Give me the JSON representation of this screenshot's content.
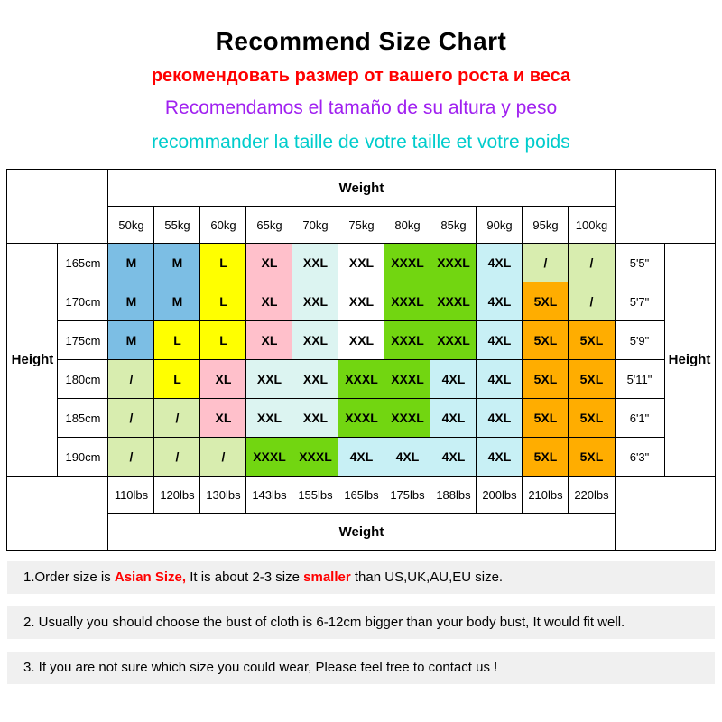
{
  "header": {
    "title": "Recommend Size Chart",
    "subtitle_ru": "рекомендовать размер от вашего роста и веса",
    "subtitle_es": "Recomendamos el tamaño de su altura y peso",
    "subtitle_fr": "recommander la taille de votre taille et votre poids",
    "colors": {
      "title": "#000000",
      "ru": "#FF0000",
      "es": "#A020F0",
      "fr": "#00CCCC"
    }
  },
  "chart_data": {
    "type": "table",
    "title": "Recommend Size Chart",
    "weight_label": "Weight",
    "height_label": "Height",
    "weights_kg": [
      "50kg",
      "55kg",
      "60kg",
      "65kg",
      "70kg",
      "75kg",
      "80kg",
      "85kg",
      "90kg",
      "95kg",
      "100kg"
    ],
    "weights_lbs": [
      "110lbs",
      "120lbs",
      "130lbs",
      "143lbs",
      "155lbs",
      "165lbs",
      "175lbs",
      "188lbs",
      "200lbs",
      "210lbs",
      "220lbs"
    ],
    "cell_colors": {
      "blue": "#7CBEE4",
      "yellow": "#FFFF00",
      "pink": "#FFC0CB",
      "paleCyan": "#DCF4F1",
      "white": "#FFFFFF",
      "green": "#72D611",
      "cyan": "#C8F0F5",
      "orange": "#FFAD00",
      "paleGreen": "#D8EDAF"
    },
    "rows": [
      {
        "height_cm": "165cm",
        "height_ft": "5'5\"",
        "cells": [
          {
            "v": "M",
            "c": "blue"
          },
          {
            "v": "M",
            "c": "blue"
          },
          {
            "v": "L",
            "c": "yellow"
          },
          {
            "v": "XL",
            "c": "pink"
          },
          {
            "v": "XXL",
            "c": "paleCyan"
          },
          {
            "v": "XXL",
            "c": "white"
          },
          {
            "v": "XXXL",
            "c": "green"
          },
          {
            "v": "XXXL",
            "c": "green"
          },
          {
            "v": "4XL",
            "c": "cyan"
          },
          {
            "v": "/",
            "c": "paleGreen"
          },
          {
            "v": "/",
            "c": "paleGreen"
          }
        ]
      },
      {
        "height_cm": "170cm",
        "height_ft": "5'7\"",
        "cells": [
          {
            "v": "M",
            "c": "blue"
          },
          {
            "v": "M",
            "c": "blue"
          },
          {
            "v": "L",
            "c": "yellow"
          },
          {
            "v": "XL",
            "c": "pink"
          },
          {
            "v": "XXL",
            "c": "paleCyan"
          },
          {
            "v": "XXL",
            "c": "white"
          },
          {
            "v": "XXXL",
            "c": "green"
          },
          {
            "v": "XXXL",
            "c": "green"
          },
          {
            "v": "4XL",
            "c": "cyan"
          },
          {
            "v": "5XL",
            "c": "orange"
          },
          {
            "v": "/",
            "c": "paleGreen"
          }
        ]
      },
      {
        "height_cm": "175cm",
        "height_ft": "5'9\"",
        "cells": [
          {
            "v": "M",
            "c": "blue"
          },
          {
            "v": "L",
            "c": "yellow"
          },
          {
            "v": "L",
            "c": "yellow"
          },
          {
            "v": "XL",
            "c": "pink"
          },
          {
            "v": "XXL",
            "c": "paleCyan"
          },
          {
            "v": "XXL",
            "c": "white"
          },
          {
            "v": "XXXL",
            "c": "green"
          },
          {
            "v": "XXXL",
            "c": "green"
          },
          {
            "v": "4XL",
            "c": "cyan"
          },
          {
            "v": "5XL",
            "c": "orange"
          },
          {
            "v": "5XL",
            "c": "orange"
          }
        ]
      },
      {
        "height_cm": "180cm",
        "height_ft": "5'11\"",
        "cells": [
          {
            "v": "/",
            "c": "paleGreen"
          },
          {
            "v": "L",
            "c": "yellow"
          },
          {
            "v": "XL",
            "c": "pink"
          },
          {
            "v": "XXL",
            "c": "paleCyan"
          },
          {
            "v": "XXL",
            "c": "paleCyan"
          },
          {
            "v": "XXXL",
            "c": "green"
          },
          {
            "v": "XXXL",
            "c": "green"
          },
          {
            "v": "4XL",
            "c": "cyan"
          },
          {
            "v": "4XL",
            "c": "cyan"
          },
          {
            "v": "5XL",
            "c": "orange"
          },
          {
            "v": "5XL",
            "c": "orange"
          }
        ]
      },
      {
        "height_cm": "185cm",
        "height_ft": "6'1\"",
        "cells": [
          {
            "v": "/",
            "c": "paleGreen"
          },
          {
            "v": "/",
            "c": "paleGreen"
          },
          {
            "v": "XL",
            "c": "pink"
          },
          {
            "v": "XXL",
            "c": "paleCyan"
          },
          {
            "v": "XXL",
            "c": "paleCyan"
          },
          {
            "v": "XXXL",
            "c": "green"
          },
          {
            "v": "XXXL",
            "c": "green"
          },
          {
            "v": "4XL",
            "c": "cyan"
          },
          {
            "v": "4XL",
            "c": "cyan"
          },
          {
            "v": "5XL",
            "c": "orange"
          },
          {
            "v": "5XL",
            "c": "orange"
          }
        ]
      },
      {
        "height_cm": "190cm",
        "height_ft": "6'3\"",
        "cells": [
          {
            "v": "/",
            "c": "paleGreen"
          },
          {
            "v": "/",
            "c": "paleGreen"
          },
          {
            "v": "/",
            "c": "paleGreen"
          },
          {
            "v": "XXXL",
            "c": "green"
          },
          {
            "v": "XXXL",
            "c": "green"
          },
          {
            "v": "4XL",
            "c": "cyan"
          },
          {
            "v": "4XL",
            "c": "cyan"
          },
          {
            "v": "4XL",
            "c": "cyan"
          },
          {
            "v": "4XL",
            "c": "cyan"
          },
          {
            "v": "5XL",
            "c": "orange"
          },
          {
            "v": "5XL",
            "c": "orange"
          }
        ]
      }
    ]
  },
  "notes": [
    {
      "segments": [
        {
          "t": "1.Order size is ",
          "color": "#000000",
          "bold": false
        },
        {
          "t": "Asian Size,",
          "color": "#FF0000",
          "bold": true
        },
        {
          "t": " It is about 2-3 size ",
          "color": "#000000",
          "bold": false
        },
        {
          "t": "smaller",
          "color": "#FF0000",
          "bold": true
        },
        {
          "t": " than US,UK,AU,EU size.",
          "color": "#000000",
          "bold": false
        }
      ]
    },
    {
      "segments": [
        {
          "t": "2. Usually you should choose the bust of cloth is 6-12cm bigger than your body bust, It would fit well.",
          "color": "#000000",
          "bold": false
        }
      ]
    },
    {
      "segments": [
        {
          "t": "3. If you are not sure which size you could wear, Please feel free to contact us !",
          "color": "#000000",
          "bold": false
        }
      ]
    }
  ]
}
